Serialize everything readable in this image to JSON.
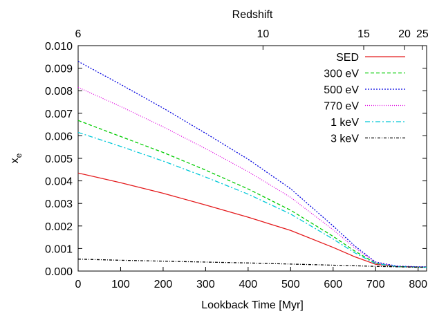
{
  "chart_data": {
    "type": "line",
    "xlabel": "Lookback Time [Myr]",
    "ylabel": "x",
    "ylabel_subscript": "e",
    "top_axis_label": "Redshift",
    "xlim": [
      0,
      820
    ],
    "ylim": [
      0,
      0.01
    ],
    "x_ticks": [
      0,
      100,
      200,
      300,
      400,
      500,
      600,
      700,
      800
    ],
    "y_ticks": [
      "0.000",
      "0.001",
      "0.002",
      "0.003",
      "0.004",
      "0.005",
      "0.006",
      "0.007",
      "0.008",
      "0.009",
      "0.010"
    ],
    "top_ticks": [
      {
        "label": "6",
        "x": 0
      },
      {
        "label": "10",
        "x": 435
      },
      {
        "label": "15",
        "x": 672
      },
      {
        "label": "20",
        "x": 768
      },
      {
        "label": "25",
        "x": 810
      }
    ],
    "grid": false,
    "legend_position": "top-right",
    "series": [
      {
        "name": "SED",
        "color": "#e41a1c",
        "dash": "",
        "x": [
          0,
          100,
          200,
          300,
          400,
          500,
          600,
          650,
          700,
          750,
          800,
          820
        ],
        "y": [
          0.00435,
          0.00392,
          0.00345,
          0.00293,
          0.00239,
          0.0018,
          0.00105,
          0.00064,
          0.0003,
          0.0002,
          0.00018,
          0.00018
        ]
      },
      {
        "name": "300 eV",
        "color": "#00cc00",
        "dash": "5,3",
        "x": [
          0,
          100,
          200,
          300,
          400,
          500,
          600,
          650,
          700,
          750,
          800,
          820
        ],
        "y": [
          0.00668,
          0.00597,
          0.00526,
          0.00448,
          0.00364,
          0.0027,
          0.00154,
          0.0009,
          0.00035,
          0.0002,
          0.00018,
          0.00018
        ]
      },
      {
        "name": "500 eV",
        "color": "#0000e0",
        "dash": "2,2",
        "x": [
          0,
          100,
          200,
          300,
          400,
          500,
          600,
          650,
          700,
          750,
          800,
          820
        ],
        "y": [
          0.0093,
          0.00828,
          0.00723,
          0.00611,
          0.00496,
          0.00365,
          0.002,
          0.00113,
          0.0004,
          0.00022,
          0.00019,
          0.00019
        ]
      },
      {
        "name": "770 eV",
        "color": "#e000e0",
        "dash": "1,2",
        "x": [
          0,
          100,
          200,
          300,
          400,
          500,
          600,
          650,
          700,
          750,
          800,
          820
        ],
        "y": [
          0.00815,
          0.0073,
          0.0064,
          0.00543,
          0.00441,
          0.00327,
          0.00183,
          0.00104,
          0.00038,
          0.00021,
          0.00018,
          0.00018
        ]
      },
      {
        "name": "1 keV",
        "color": "#00c8d8",
        "dash": "7,3,2,3",
        "x": [
          0,
          100,
          200,
          300,
          400,
          500,
          600,
          650,
          700,
          750,
          800,
          820
        ],
        "y": [
          0.00615,
          0.00553,
          0.00488,
          0.00417,
          0.00341,
          0.00253,
          0.00142,
          0.00082,
          0.00033,
          0.0002,
          0.00017,
          0.00017
        ]
      },
      {
        "name": "3 keV",
        "color": "#000000",
        "dash": "4,2,1,2",
        "x": [
          0,
          100,
          200,
          300,
          400,
          500,
          600,
          700,
          800,
          820
        ],
        "y": [
          0.00053,
          0.00048,
          0.00044,
          0.0004,
          0.00036,
          0.00031,
          0.00026,
          0.00021,
          0.00017,
          0.00017
        ]
      }
    ]
  }
}
